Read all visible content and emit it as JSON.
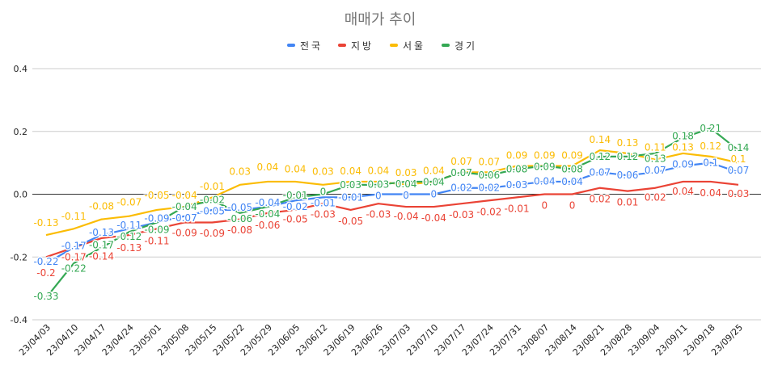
{
  "chart_data": {
    "type": "line",
    "title": "매매가 추이",
    "xlabel": "",
    "ylabel": "",
    "ylim": [
      -0.4,
      0.4
    ],
    "yticks": [
      "0.4",
      "0.2",
      "0.0",
      "-0.2",
      "-0.4"
    ],
    "grid": true,
    "legend": "top",
    "categories": [
      "23/04/03",
      "23/04/10",
      "23/04/17",
      "23/04/24",
      "23/05/01",
      "23/05/08",
      "23/05/15",
      "23/05/22",
      "23/05/29",
      "23/06/05",
      "23/06/12",
      "23/06/19",
      "23/06/26",
      "23/07/03",
      "23/07/10",
      "23/07/17",
      "23/07/24",
      "23/07/31",
      "23/08/07",
      "23/08/14",
      "23/08/21",
      "23/08/28",
      "23/09/04",
      "23/09/11",
      "23/09/18",
      "23/09/25"
    ],
    "series": [
      {
        "name": "전국",
        "color": "#4285f4",
        "values": [
          -0.22,
          -0.17,
          -0.13,
          -0.11,
          -0.09,
          -0.07,
          -0.05,
          -0.05,
          -0.04,
          -0.02,
          -0.01,
          -0.01,
          0,
          0,
          0,
          0.02,
          0.02,
          0.03,
          0.04,
          0.04,
          0.07,
          0.06,
          0.07,
          0.09,
          0.1,
          0.07
        ]
      },
      {
        "name": "지방",
        "color": "#ea4335",
        "values": [
          -0.2,
          -0.17,
          -0.14,
          -0.13,
          -0.11,
          -0.09,
          -0.09,
          -0.08,
          -0.06,
          -0.05,
          -0.03,
          -0.05,
          -0.03,
          -0.04,
          -0.04,
          -0.03,
          -0.02,
          -0.01,
          0,
          0,
          0.02,
          0.01,
          0.02,
          0.04,
          0.04,
          0.03
        ]
      },
      {
        "name": "서울",
        "color": "#fbbc04",
        "values": [
          -0.13,
          -0.11,
          -0.08,
          -0.07,
          -0.05,
          -0.04,
          -0.01,
          0.03,
          0.04,
          0.04,
          0.03,
          0.04,
          0.04,
          0.03,
          0.04,
          0.07,
          0.07,
          0.09,
          0.09,
          0.09,
          0.14,
          0.13,
          0.11,
          0.13,
          0.12,
          0.1
        ]
      },
      {
        "name": "경기",
        "color": "#34a853",
        "values": [
          -0.33,
          -0.22,
          -0.17,
          -0.12,
          -0.09,
          -0.04,
          -0.02,
          -0.06,
          -0.04,
          -0.01,
          0,
          0.03,
          0.03,
          0.04,
          0.04,
          0.07,
          0.06,
          0.08,
          0.09,
          0.08,
          0.12,
          0.12,
          0.13,
          0.18,
          0.21,
          0.14
        ]
      }
    ]
  }
}
